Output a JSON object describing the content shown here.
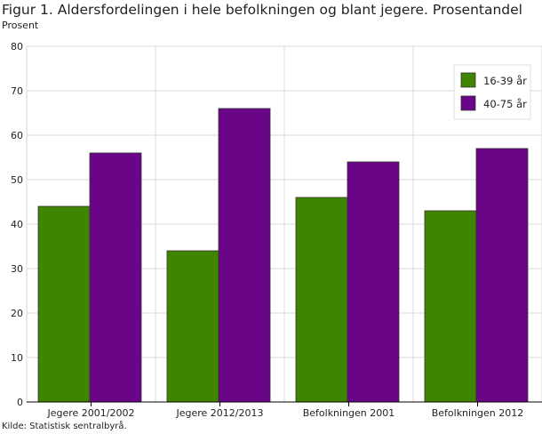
{
  "chart_data": {
    "type": "bar",
    "title": "Figur 1. Aldersfordelingen i hele befolkningen og blant jegere. Prosentandel",
    "ylabel": "Prosent",
    "xlabel": "",
    "categories": [
      "Jegere 2001/2002",
      "Jegere 2012/2013",
      "Befolkningen  2001",
      "Befolkningen 2012"
    ],
    "series": [
      {
        "name": "16-39 år",
        "values": [
          44,
          34,
          46,
          43
        ],
        "color": "#3f8500"
      },
      {
        "name": "40-75 år",
        "values": [
          56,
          66,
          54,
          57
        ],
        "color": "#6b0588"
      }
    ],
    "ylim": [
      0,
      80
    ],
    "yticks": [
      0,
      10,
      20,
      30,
      40,
      50,
      60,
      70,
      80
    ],
    "grid": true,
    "legend_position": "top-right",
    "source": "Kilde: Statistisk sentralbyrå."
  }
}
